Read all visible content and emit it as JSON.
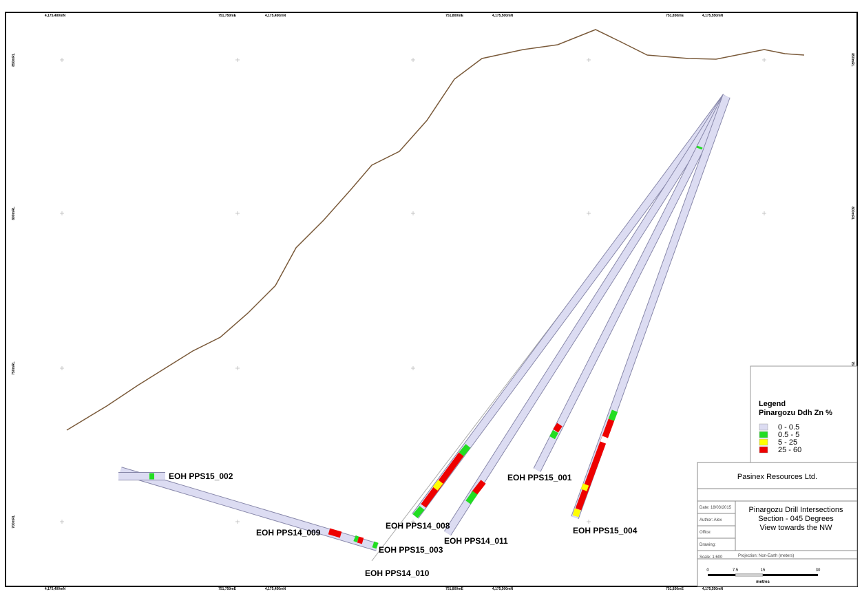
{
  "grid_labels": {
    "top": [
      "4,175,400mN",
      "751,750mE",
      "4,175,450mN",
      "751,800mE",
      "4,175,500mN",
      "751,850mE",
      "4,175,550mN"
    ],
    "bottom": [
      "4,175,400mN",
      "751,750mE",
      "4,175,450mN",
      "751,800mE",
      "4,175,500mN",
      "751,850mE",
      "4,175,550mN"
    ],
    "elevations": [
      "850mRL",
      "800mRL",
      "750mRL",
      "700mRL"
    ]
  },
  "holes": [
    "EOH PPS15_002",
    "EOH PPS14_009",
    "EOH PPS15_003",
    "EOH PPS14_010",
    "EOH PPS14_008",
    "EOH PPS14_011",
    "EOH PPS15_001",
    "EOH PPS15_004"
  ],
  "legend": {
    "title": "Legend",
    "subtitle": "Pinargozu Ddh Zn %",
    "items": [
      {
        "label": "0 - 0.5",
        "color": "#dcdcf2"
      },
      {
        "label": "0.5 - 5",
        "color": "#22dd22"
      },
      {
        "label": "5 - 25",
        "color": "#ffff00"
      },
      {
        "label": "25 - 60",
        "color": "#ee0000"
      }
    ]
  },
  "title_block": {
    "company": "Pasinex Resources Ltd.",
    "title": [
      "Pinargozu Drill Intersections",
      "Section - 045 Degrees",
      "View towards the NW"
    ],
    "fields": [
      "Date: 18/03/2015",
      "Author: Alex",
      "Office:",
      "Drawing:",
      "Scale: 1:600"
    ],
    "projection": "Projection: Non-Earth (meters)",
    "scale_labels": [
      "0",
      "7.5",
      "15",
      "30"
    ],
    "scale_unit": "metres"
  }
}
